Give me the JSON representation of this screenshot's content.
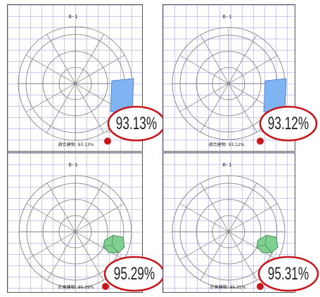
{
  "panels": [
    {
      "diagram_title": "B-1",
      "caption": "適合建物: 93.13%",
      "callout_value": "93.13%",
      "sector_color": "#7fb3f2",
      "sector_stroke": "#3f78c8"
    },
    {
      "diagram_title": "B-1",
      "caption": "適合建物: 93.12%",
      "callout_value": "93.12%",
      "sector_color": "#7fb3f2",
      "sector_stroke": "#3f78c8"
    },
    {
      "diagram_title": "B-1",
      "caption": "計画建物: 95.29%",
      "callout_value": "95.29%",
      "sector_color": "#7fcf91",
      "sector_stroke": "#2f7a44"
    },
    {
      "diagram_title": "B-1",
      "caption": "計画建物: 95.31%",
      "callout_value": "95.31%",
      "sector_color": "#7fcf91",
      "sector_stroke": "#2f7a44"
    }
  ],
  "colors": {
    "callout_red": "#c8161d",
    "grid_line": "#a0a0e6",
    "circle_line": "#777777"
  }
}
